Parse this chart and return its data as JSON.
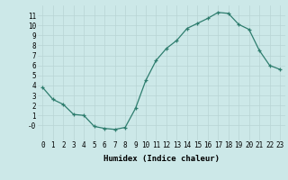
{
  "x": [
    0,
    1,
    2,
    3,
    4,
    5,
    6,
    7,
    8,
    9,
    10,
    11,
    12,
    13,
    14,
    15,
    16,
    17,
    18,
    19,
    20,
    21,
    22,
    23
  ],
  "y": [
    3.8,
    2.6,
    2.1,
    1.1,
    1.0,
    -0.1,
    -0.3,
    -0.4,
    -0.2,
    1.7,
    4.5,
    6.5,
    7.7,
    8.5,
    9.7,
    10.2,
    10.7,
    11.3,
    11.2,
    10.1,
    9.6,
    7.5,
    6.0,
    5.6
  ],
  "xlabel": "Humidex (Indice chaleur)",
  "xlim": [
    -0.5,
    23.5
  ],
  "ylim": [
    -1.5,
    12.0
  ],
  "xticks": [
    0,
    1,
    2,
    3,
    4,
    5,
    6,
    7,
    8,
    9,
    10,
    11,
    12,
    13,
    14,
    15,
    16,
    17,
    18,
    19,
    20,
    21,
    22,
    23
  ],
  "yticks": [
    0,
    1,
    2,
    3,
    4,
    5,
    6,
    7,
    8,
    9,
    10,
    11
  ],
  "ytick_labels": [
    "-0",
    "1",
    "2",
    "3",
    "4",
    "5",
    "6",
    "7",
    "8",
    "9",
    "10",
    "11"
  ],
  "line_color": "#2e7d6e",
  "marker": "+",
  "bg_color": "#cce8e8",
  "grid_color": "#b8d4d4",
  "tick_fontsize": 5.5,
  "xlabel_fontsize": 6.5
}
